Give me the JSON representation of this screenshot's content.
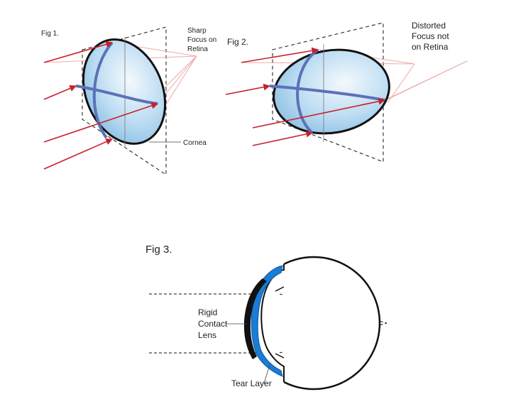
{
  "fig1": {
    "title": "Fig 1.",
    "focus_label": [
      "Sharp",
      "Focus on",
      "Retina"
    ],
    "cornea_label": "Cornea"
  },
  "fig2": {
    "title": "Fig 2.",
    "focus_label": [
      "Distorted",
      "Focus not",
      "on Retina"
    ]
  },
  "fig3": {
    "title": "Fig 3.",
    "lens_label": [
      "Rigid",
      "Contact",
      "Lens"
    ],
    "tear_label": "Tear Layer"
  },
  "colors": {
    "ray_red": "#c8202a",
    "ray_light": "#f0a8a8",
    "axis_blue": "#5a72b8",
    "lens_blue": "#1a7cd4",
    "cornea_fill_light": "#f4f9fd",
    "cornea_fill_dark": "#7fb8e0",
    "outline": "#111111"
  }
}
